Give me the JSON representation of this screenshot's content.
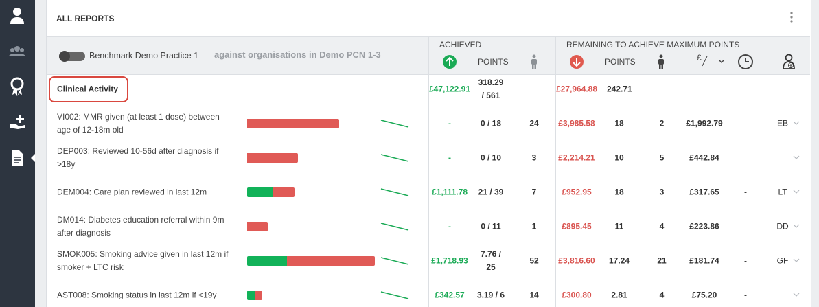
{
  "header": {
    "title": "ALL REPORTS"
  },
  "filter": {
    "practice": "Benchmark Demo Practice 1",
    "comparison": "against organisations in Demo PCN 1-3"
  },
  "columns": {
    "achieved": "ACHIEVED",
    "achieved_points": "POINTS",
    "remaining": "REMAINING TO ACHIEVE MAXIMUM POINTS",
    "remaining_points": "POINTS"
  },
  "group": {
    "name": "Clinical Activity",
    "achieved": "£47,122.91",
    "points": "318.29 / 561",
    "remaining": "£27,964.88",
    "remaining_points": "242.71"
  },
  "rows": [
    {
      "name": "VI002: MMR given (at least 1 dose) between age of 12-18m old",
      "achieved": "-",
      "points": "0 / 18",
      "patients": "24",
      "remaining": {
        "value": 3985.58,
        "label": "£3,985.58"
      },
      "remaining_points": "18",
      "remaining_patients": "2",
      "per_patient": "£1,992.79",
      "time": "-",
      "assignee": "EB"
    },
    {
      "name": "DEP003: Reviewed 10-56d after diagnosis if >18y",
      "achieved": "-",
      "points": "0 / 10",
      "patients": "3",
      "remaining": {
        "value": 2214.21,
        "label": "£2,214.21"
      },
      "remaining_points": "10",
      "remaining_patients": "5",
      "per_patient": "£442.84"
    },
    {
      "name": "DEM004: Care plan reviewed in last 12m",
      "achieved": {
        "value": 1111.78,
        "label": "£1,111.78"
      },
      "points": "21 / 39",
      "patients": "7",
      "remaining": {
        "value": 952.95,
        "label": "£952.95"
      },
      "remaining_points": "18",
      "remaining_patients": "3",
      "per_patient": "£317.65",
      "time": "-",
      "assignee": "LT"
    },
    {
      "name": "DM014: Diabetes education referral within 9m after diagnosis",
      "achieved": "-",
      "points": "0 / 11",
      "patients": "1",
      "remaining": {
        "value": 895.45,
        "label": "£895.45"
      },
      "remaining_points": "11",
      "remaining_patients": "4",
      "per_patient": "£223.86",
      "time": "-",
      "assignee": "DD"
    },
    {
      "name": "SMOK005: Smoking advice given in last 12m if smoker + LTC risk",
      "achieved": {
        "value": 1718.93,
        "label": "£1,718.93"
      },
      "points": "7.76 / 25",
      "patients": "52",
      "remaining": {
        "value": 3816.6,
        "label": "£3,816.60"
      },
      "remaining_points": "17.24",
      "remaining_patients": "21",
      "per_patient": "£181.74",
      "time": "-",
      "assignee": "GF"
    },
    {
      "name": "AST008: Smoking status in last 12m if <19y",
      "achieved": {
        "value": 342.57,
        "label": "£342.57"
      },
      "points": "3.19 / 6",
      "patients": "14",
      "remaining": {
        "value": 300.8,
        "label": "£300.80"
      },
      "remaining_points": "2.81",
      "remaining_patients": "4",
      "per_patient": "£75.20",
      "time": "-"
    }
  ]
}
